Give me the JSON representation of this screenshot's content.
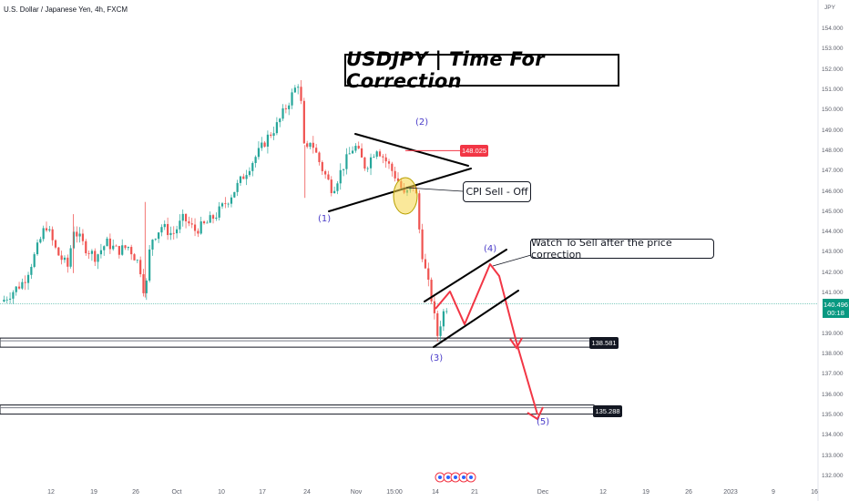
{
  "symbol_label": "U.S. Dollar / Japanese Yen, 4h, FXCM",
  "title": "USDJPY | Time For Correction",
  "currency_unit": "JPY",
  "annotations": {
    "cpi": "CPI Sell - Off",
    "watch": "Watch To Sell after the price correction"
  },
  "price_tags": {
    "resistance": "148.025",
    "current": "140.496",
    "countdown": "00:18",
    "support1": "138.581",
    "support2": "135.288"
  },
  "wave_labels": {
    "w1": "(1)",
    "w2": "(2)",
    "w3": "(3)",
    "w4": "(4)",
    "w5": "(5)"
  },
  "colors": {
    "up": "#26a69a",
    "down": "#ef5350",
    "projection": "#f23645",
    "wave_label": "#4a3cc9",
    "current_price": "#089981",
    "resistance_tag": "#f23645",
    "highlight": "#f5d547"
  },
  "chart_data": {
    "type": "candlestick",
    "title": "USDJPY | Time For Correction",
    "y_axis_label": "JPY",
    "ylim": [
      131.5,
      155.2
    ],
    "y_ticks": [
      "154.000",
      "153.000",
      "152.000",
      "151.000",
      "150.000",
      "149.000",
      "148.000",
      "147.000",
      "146.000",
      "145.000",
      "144.000",
      "143.000",
      "142.000",
      "141.000",
      "139.000",
      "138.000",
      "137.000",
      "136.000",
      "135.000",
      "134.000",
      "133.000",
      "132.000"
    ],
    "x_ticks": [
      "12",
      "19",
      "26",
      "Oct",
      "10",
      "17",
      "24",
      "Nov",
      "15:00",
      "14",
      "21",
      "Dec",
      "12",
      "19",
      "26",
      "2023",
      "9",
      "16"
    ],
    "price_path": [
      {
        "t": 0,
        "p": 140.6
      },
      {
        "t": 4,
        "p": 141.6
      },
      {
        "t": 6,
        "p": 142.9
      },
      {
        "t": 8,
        "p": 144.4
      },
      {
        "t": 10,
        "p": 143.0
      },
      {
        "t": 12,
        "p": 142.3
      },
      {
        "t": 13,
        "p": 144.2
      },
      {
        "t": 15,
        "p": 143.3
      },
      {
        "t": 17,
        "p": 142.8
      },
      {
        "t": 19,
        "p": 143.5
      },
      {
        "t": 21,
        "p": 143.1
      },
      {
        "t": 23,
        "p": 143.3
      },
      {
        "t": 25,
        "p": 142.4
      },
      {
        "t": 26,
        "p": 140.8
      },
      {
        "t": 27,
        "p": 143.6
      },
      {
        "t": 29,
        "p": 144.3
      },
      {
        "t": 31,
        "p": 143.9
      },
      {
        "t": 33,
        "p": 144.7
      },
      {
        "t": 35,
        "p": 144.1
      },
      {
        "t": 37,
        "p": 144.4
      },
      {
        "t": 39,
        "p": 144.9
      },
      {
        "t": 41,
        "p": 145.6
      },
      {
        "t": 43,
        "p": 146.4
      },
      {
        "t": 45,
        "p": 147.3
      },
      {
        "t": 47,
        "p": 148.1
      },
      {
        "t": 48,
        "p": 148.6
      },
      {
        "t": 50,
        "p": 149.3
      },
      {
        "t": 52,
        "p": 150.4
      },
      {
        "t": 54,
        "p": 151.5
      },
      {
        "t": 55,
        "p": 147.6
      },
      {
        "t": 56,
        "p": 148.6
      },
      {
        "t": 58,
        "p": 147.2
      },
      {
        "t": 60,
        "p": 146.1
      },
      {
        "t": 62,
        "p": 147.3
      },
      {
        "t": 64,
        "p": 148.3
      },
      {
        "t": 66,
        "p": 147.2
      },
      {
        "t": 68,
        "p": 148.2
      },
      {
        "t": 70,
        "p": 147.4
      },
      {
        "t": 72,
        "p": 146.5
      },
      {
        "t": 73,
        "p": 145.8
      },
      {
        "t": 75,
        "p": 146.4
      },
      {
        "t": 76,
        "p": 143.4
      },
      {
        "t": 77,
        "p": 141.9
      },
      {
        "t": 78,
        "p": 140.7
      },
      {
        "t": 79,
        "p": 138.9
      },
      {
        "t": 80,
        "p": 140.0
      },
      {
        "t": 81,
        "p": 140.5
      }
    ],
    "projection_path": [
      {
        "t": 81,
        "p": 140.5
      },
      {
        "t": 84,
        "p": 141.0
      },
      {
        "t": 87,
        "p": 139.6
      },
      {
        "t": 91,
        "p": 142.4
      },
      {
        "t": 93,
        "p": 140.8
      },
      {
        "t": 95,
        "p": 138.9
      },
      {
        "t": 98,
        "p": 135.0
      }
    ],
    "current_price": 140.496,
    "horizontal_levels": [
      138.581,
      135.288
    ],
    "resistance_marker": 148.025,
    "legend": "none",
    "grid": false
  }
}
